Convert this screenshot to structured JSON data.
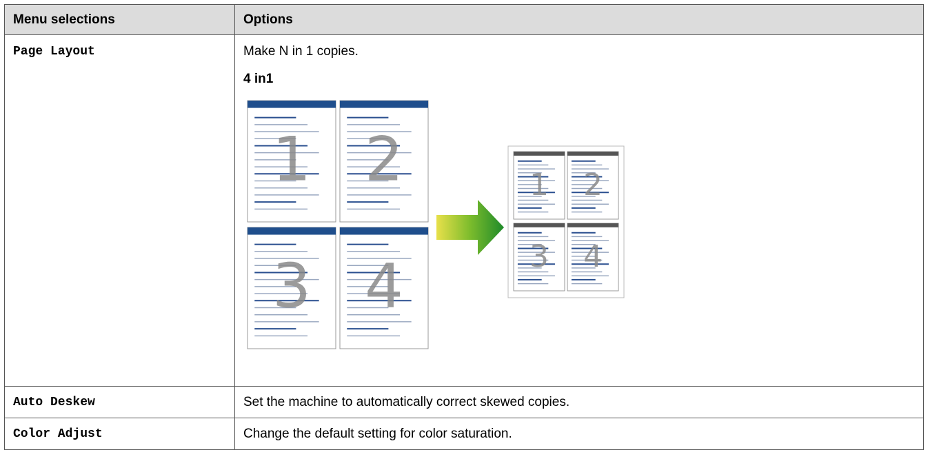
{
  "table": {
    "header": [
      "Menu selections",
      "Options"
    ],
    "rows": [
      {
        "menu": "Page Layout",
        "description": "Make N in 1 copies.",
        "subheading": "4 in1",
        "illustration": {
          "page_numbers": [
            "1",
            "2",
            "3",
            "4"
          ]
        }
      },
      {
        "menu": "Auto Deskew",
        "description": "Set the machine to automatically correct skewed copies."
      },
      {
        "menu": "Color Adjust",
        "description": "Change the default setting for color saturation."
      }
    ]
  }
}
